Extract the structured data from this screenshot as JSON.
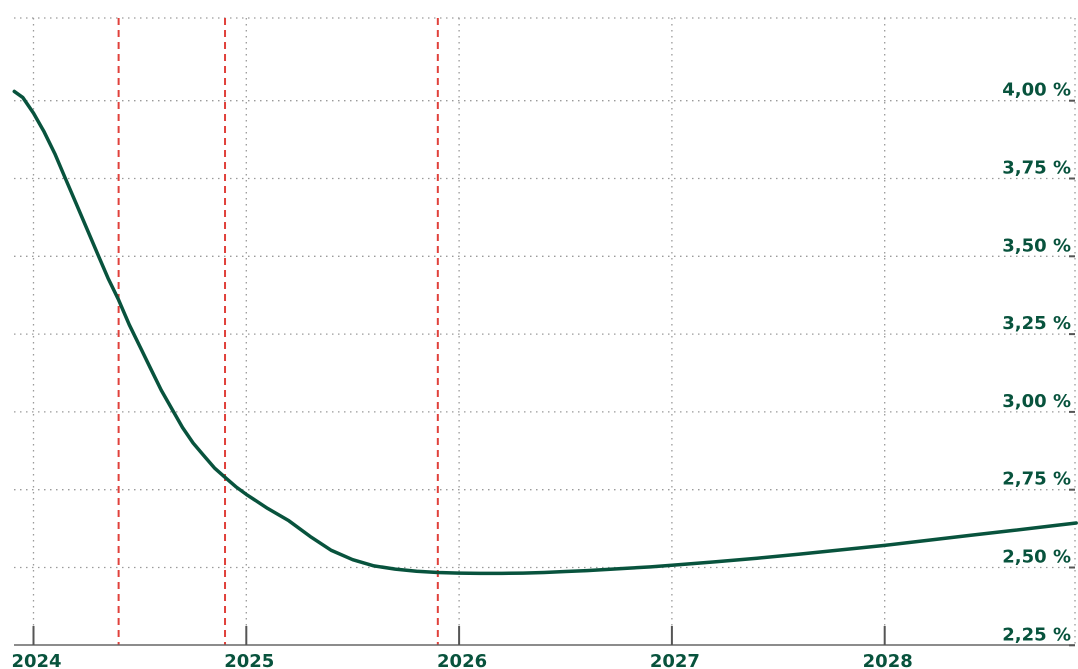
{
  "chart_data": {
    "type": "line",
    "title": "",
    "xlabel": "",
    "ylabel": "",
    "grid": true,
    "xlim": [
      2023.9,
      2028.9
    ],
    "ylim": [
      2.25,
      4.3
    ],
    "x_ticks": [
      {
        "value": 2024,
        "label": "2024"
      },
      {
        "value": 2025,
        "label": "2025"
      },
      {
        "value": 2026,
        "label": "2026"
      },
      {
        "value": 2027,
        "label": "2027"
      },
      {
        "value": 2028,
        "label": "2028"
      }
    ],
    "y_ticks": [
      {
        "value": 2.25,
        "label": "2,25 %"
      },
      {
        "value": 2.5,
        "label": "2,50 %"
      },
      {
        "value": 2.75,
        "label": "2,75 %"
      },
      {
        "value": 3.0,
        "label": "3,00 %"
      },
      {
        "value": 3.25,
        "label": "3,25 %"
      },
      {
        "value": 3.5,
        "label": "3,50 %"
      },
      {
        "value": 3.75,
        "label": "3,75 %"
      },
      {
        "value": 4.0,
        "label": "4,00 %"
      }
    ],
    "reference_lines": [
      2024.4,
      2024.9,
      2025.9
    ],
    "series": [
      {
        "x": [
          2023.91,
          2023.95,
          2024.0,
          2024.05,
          2024.1,
          2024.15,
          2024.2,
          2024.25,
          2024.3,
          2024.35,
          2024.4,
          2024.45,
          2024.5,
          2024.55,
          2024.6,
          2024.65,
          2024.7,
          2024.75,
          2024.8,
          2024.85,
          2024.9,
          2024.95,
          2025.0,
          2025.1,
          2025.2,
          2025.3,
          2025.4,
          2025.5,
          2025.6,
          2025.7,
          2025.8,
          2025.9,
          2026.0,
          2026.1,
          2026.2,
          2026.3,
          2026.4,
          2026.5,
          2026.6,
          2026.7,
          2026.8,
          2026.9,
          2027.0,
          2027.2,
          2027.4,
          2027.6,
          2027.8,
          2028.0,
          2028.2,
          2028.4,
          2028.6,
          2028.8,
          2028.9
        ],
        "values": [
          4.03,
          4.01,
          3.96,
          3.9,
          3.83,
          3.75,
          3.67,
          3.59,
          3.51,
          3.43,
          3.36,
          3.28,
          3.21,
          3.14,
          3.07,
          3.01,
          2.95,
          2.9,
          2.86,
          2.82,
          2.79,
          2.76,
          2.735,
          2.69,
          2.65,
          2.6,
          2.555,
          2.525,
          2.505,
          2.495,
          2.488,
          2.484,
          2.482,
          2.481,
          2.481,
          2.482,
          2.484,
          2.487,
          2.49,
          2.494,
          2.498,
          2.502,
          2.507,
          2.518,
          2.53,
          2.543,
          2.557,
          2.571,
          2.587,
          2.603,
          2.619,
          2.635,
          2.643
        ]
      }
    ],
    "colors": {
      "line": "#08533d",
      "label": "#08533d",
      "reference": "#e0413b",
      "grid": "#9a9a9a",
      "tick": "#555555"
    }
  }
}
